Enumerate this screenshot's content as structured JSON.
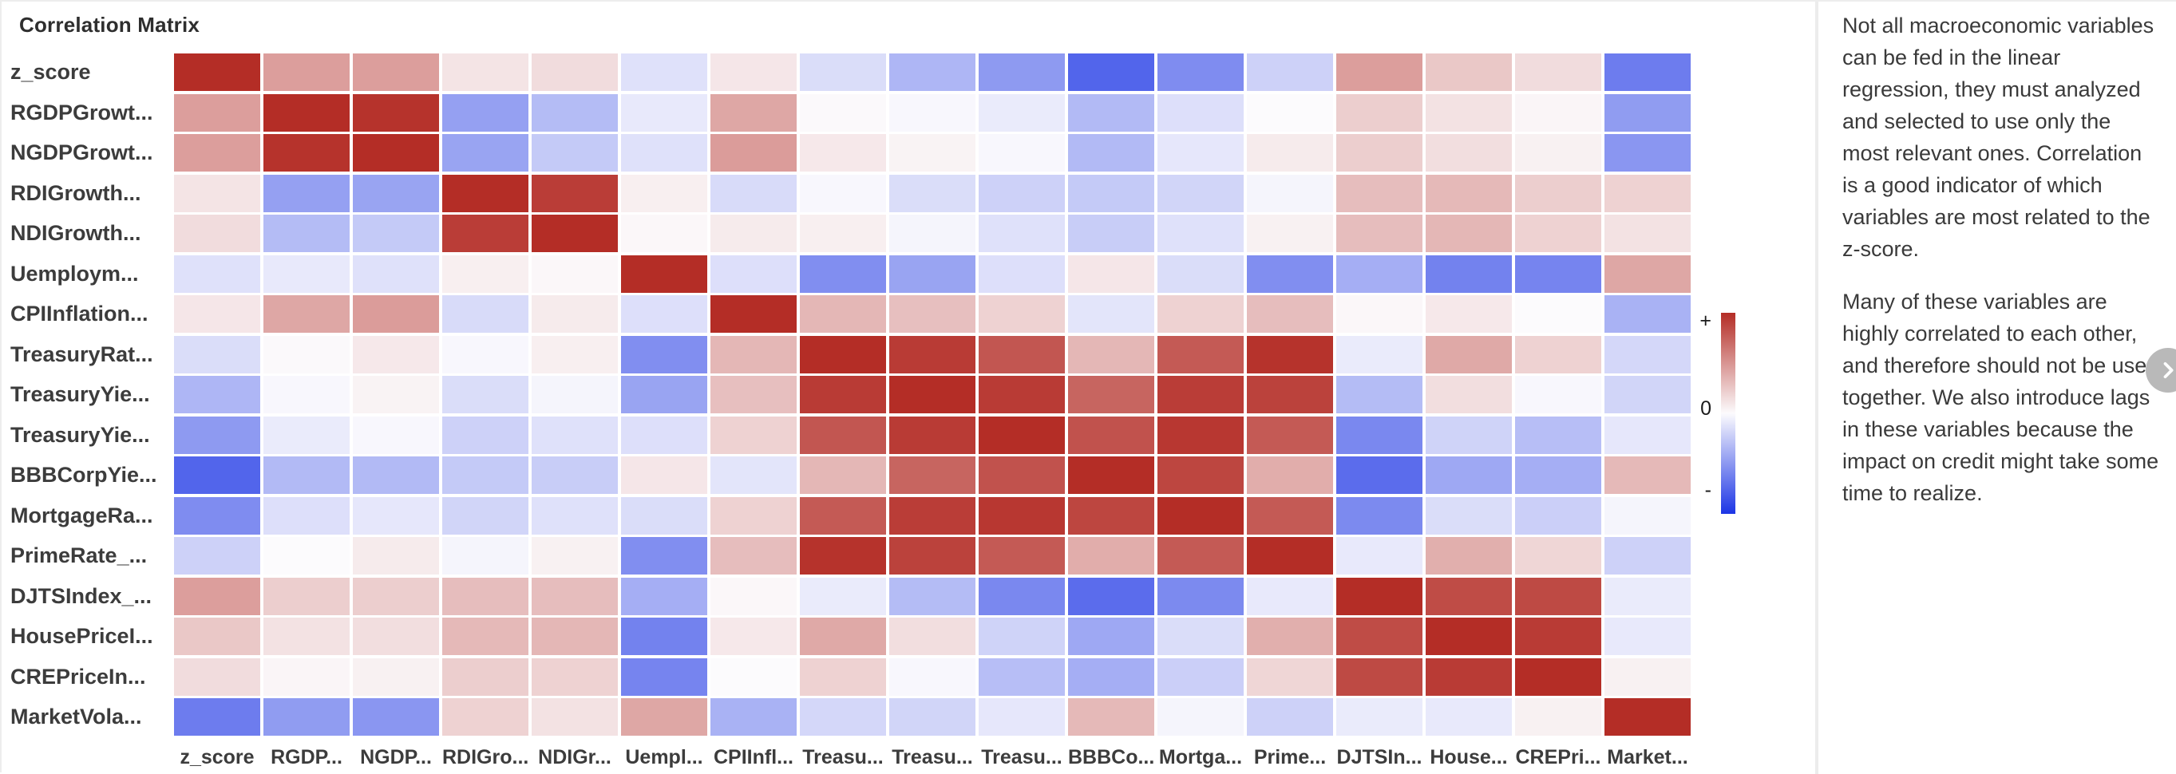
{
  "page": {
    "title": "Correlation Matrix"
  },
  "chart_data": {
    "type": "heatmap",
    "title": "Correlation Matrix",
    "row_labels": [
      "z_score",
      "RGDPGrowt...",
      "NGDPGrowt...",
      "RDIGrowth...",
      "NDIGrowth...",
      "Uemploym...",
      "CPIInflation...",
      "TreasuryRat...",
      "TreasuryYie...",
      "TreasuryYie...",
      "BBBCorpYie...",
      "MortgageRa...",
      "PrimeRate_...",
      "DJTSIndex_...",
      "HousePriceI...",
      "CREPriceIn...",
      "MarketVola..."
    ],
    "col_labels": [
      "z_score",
      "RGDP...",
      "NGDP...",
      "RDIGro...",
      "NDIGr...",
      "Uempl...",
      "CPIInfl...",
      "Treasu...",
      "Treasu...",
      "Treasu...",
      "BBBCo...",
      "Mortga...",
      "Prime...",
      "DJTSIn...",
      "House...",
      "CREPri...",
      "Market..."
    ],
    "matrix": [
      [
        1.0,
        0.45,
        0.45,
        0.11,
        0.15,
        -0.13,
        0.1,
        -0.15,
        -0.35,
        -0.49,
        -0.76,
        -0.56,
        -0.21,
        0.45,
        0.25,
        0.15,
        -0.64
      ],
      [
        0.45,
        1.0,
        0.97,
        -0.46,
        -0.32,
        -0.09,
        0.41,
        0.01,
        -0.02,
        -0.08,
        -0.33,
        -0.14,
        0.0,
        0.22,
        0.12,
        0.03,
        -0.48
      ],
      [
        0.45,
        0.97,
        1.0,
        -0.44,
        -0.25,
        -0.13,
        0.46,
        0.09,
        0.04,
        -0.02,
        -0.33,
        -0.1,
        0.08,
        0.22,
        0.14,
        0.05,
        -0.51
      ],
      [
        0.11,
        -0.46,
        -0.44,
        1.0,
        0.92,
        0.06,
        -0.16,
        -0.02,
        -0.15,
        -0.21,
        -0.25,
        -0.19,
        -0.03,
        0.3,
        0.32,
        0.22,
        0.2
      ],
      [
        0.15,
        -0.32,
        -0.25,
        0.92,
        1.0,
        0.02,
        0.08,
        0.06,
        -0.03,
        -0.13,
        -0.23,
        -0.13,
        0.05,
        0.3,
        0.33,
        0.2,
        0.12
      ],
      [
        -0.13,
        -0.09,
        -0.13,
        0.06,
        0.02,
        1.0,
        -0.14,
        -0.55,
        -0.44,
        -0.14,
        0.1,
        -0.15,
        -0.55,
        -0.39,
        -0.61,
        -0.6,
        0.41
      ],
      [
        0.1,
        0.41,
        0.46,
        -0.16,
        0.08,
        -0.14,
        1.0,
        0.33,
        0.29,
        0.2,
        -0.11,
        0.2,
        0.3,
        0.02,
        0.09,
        0.0,
        -0.37
      ],
      [
        -0.15,
        0.01,
        0.09,
        -0.02,
        0.06,
        -0.55,
        0.33,
        1.0,
        0.93,
        0.8,
        0.33,
        0.78,
        0.97,
        -0.08,
        0.4,
        0.2,
        -0.18
      ],
      [
        -0.35,
        -0.02,
        0.04,
        -0.15,
        -0.03,
        -0.44,
        0.29,
        0.93,
        1.0,
        0.93,
        0.73,
        0.92,
        0.9,
        -0.32,
        0.14,
        -0.02,
        -0.19
      ],
      [
        -0.49,
        -0.08,
        -0.02,
        -0.21,
        -0.13,
        -0.14,
        0.2,
        0.8,
        0.93,
        1.0,
        0.82,
        0.95,
        0.78,
        -0.58,
        -0.2,
        -0.31,
        -0.1
      ],
      [
        -0.76,
        -0.33,
        -0.33,
        -0.25,
        -0.23,
        0.1,
        -0.11,
        0.33,
        0.73,
        0.82,
        1.0,
        0.88,
        0.38,
        -0.72,
        -0.42,
        -0.39,
        0.32
      ],
      [
        -0.56,
        -0.14,
        -0.1,
        -0.19,
        -0.13,
        -0.15,
        0.2,
        0.78,
        0.92,
        0.95,
        0.88,
        1.0,
        0.78,
        -0.57,
        -0.15,
        -0.22,
        -0.03
      ],
      [
        -0.21,
        0.0,
        0.08,
        -0.03,
        0.05,
        -0.55,
        0.3,
        0.97,
        0.9,
        0.78,
        0.38,
        0.78,
        1.0,
        -0.09,
        0.37,
        0.18,
        -0.21
      ],
      [
        0.45,
        0.22,
        0.22,
        0.3,
        0.3,
        -0.39,
        0.02,
        -0.08,
        -0.32,
        -0.58,
        -0.72,
        -0.57,
        -0.09,
        1.0,
        0.85,
        0.86,
        -0.08
      ],
      [
        0.25,
        0.12,
        0.14,
        0.32,
        0.33,
        -0.61,
        0.09,
        0.4,
        0.14,
        -0.2,
        -0.42,
        -0.15,
        0.37,
        0.85,
        1.0,
        0.93,
        -0.09
      ],
      [
        0.15,
        0.03,
        0.05,
        0.22,
        0.2,
        -0.6,
        0.0,
        0.2,
        -0.02,
        -0.31,
        -0.39,
        -0.22,
        0.18,
        0.86,
        0.93,
        1.0,
        0.05
      ],
      [
        -0.64,
        -0.48,
        -0.51,
        0.2,
        0.12,
        0.41,
        -0.37,
        -0.18,
        -0.19,
        -0.1,
        0.32,
        -0.03,
        -0.21,
        -0.08,
        -0.09,
        0.05,
        1.0
      ]
    ],
    "value_range": [
      -1,
      1
    ],
    "colorscale": {
      "positive_end": "#b42d26",
      "zero": "#fcfbfd",
      "negative_end": "#1c35e5"
    },
    "legend_position": "right",
    "colorbar_labels": {
      "plus": "+",
      "zero": "0",
      "minus": "-"
    },
    "grid": false
  },
  "side_panel": {
    "paragraph_1": "Not all macroeconomic variables can be fed in the linear regression, they must analyzed and selected to use only the most relevant ones. Correlation is a good indicator of which variables are most related to the z-score.",
    "paragraph_2": "Many of these variables are highly correlated to each other, and therefore should not be used together. We also introduce lags in these variables because the impact on credit might take some time to realize."
  },
  "next_button": {
    "icon": "chevron-right"
  }
}
